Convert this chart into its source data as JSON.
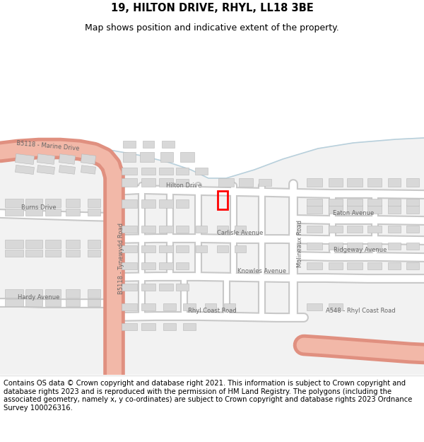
{
  "title": "19, HILTON DRIVE, RHYL, LL18 3BE",
  "subtitle": "Map shows position and indicative extent of the property.",
  "footer": "Contains OS data © Crown copyright and database right 2021. This information is subject to Crown copyright and database rights 2023 and is reproduced with the permission of HM Land Registry. The polygons (including the associated geometry, namely x, y co-ordinates) are subject to Crown copyright and database rights 2023 Ordnance Survey 100026316.",
  "bg_sand": "#f5e6c8",
  "bg_sea_line": "#b8d0dc",
  "bg_land": "#f2f2f2",
  "road_main_fill": "#f2b8a8",
  "road_main_stroke": "#e09080",
  "road_minor_fill": "#ffffff",
  "road_minor_stroke": "#c8c8c8",
  "building_fill": "#d8d8d8",
  "building_stroke": "#b8b8b8",
  "property_stroke": "#ff0000",
  "road_text_color": "#666666",
  "title_fontsize": 10.5,
  "subtitle_fontsize": 9,
  "footer_fontsize": 7.2
}
